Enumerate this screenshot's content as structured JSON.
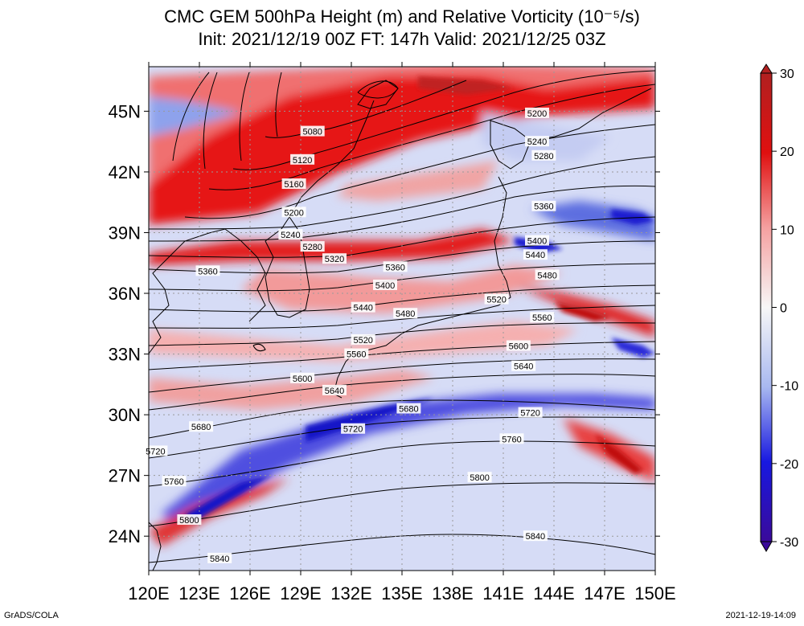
{
  "header": {
    "title_line1": "CMC GEM 500hPa Height (m) and Relative Vorticity (10⁻⁵/s)",
    "title_line2": "Init: 2021/12/19 00Z  FT: 147h  Valid: 2021/12/25 03Z"
  },
  "map": {
    "lon_labels": [
      "120E",
      "123E",
      "126E",
      "129E",
      "132E",
      "135E",
      "138E",
      "141E",
      "144E",
      "147E",
      "150E"
    ],
    "lat_labels": [
      "24N",
      "27N",
      "30N",
      "33N",
      "36N",
      "39N",
      "42N",
      "45N"
    ],
    "lon_range": [
      120,
      150
    ],
    "lat_range": [
      22.3,
      47.2
    ],
    "grid": true
  },
  "contours": {
    "unit": "m",
    "lines": [
      {
        "value": "5080",
        "label_lon": 129.7,
        "label_lat": 44.0
      },
      {
        "value": "5120",
        "label_lon": 129.1,
        "label_lat": 42.6
      },
      {
        "value": "5160",
        "label_lon": 128.6,
        "label_lat": 41.4
      },
      {
        "value": "5200",
        "label_lon": 128.6,
        "label_lat": 40.0
      },
      {
        "value": "5200",
        "label_lon": 143.0,
        "label_lat": 44.9
      },
      {
        "value": "5240",
        "label_lon": 128.4,
        "label_lat": 38.9
      },
      {
        "value": "5240",
        "label_lon": 143.0,
        "label_lat": 43.5
      },
      {
        "value": "5280",
        "label_lon": 129.7,
        "label_lat": 38.3
      },
      {
        "value": "5280",
        "label_lon": 143.4,
        "label_lat": 42.8
      },
      {
        "value": "5320",
        "label_lon": 131.0,
        "label_lat": 37.7
      },
      {
        "value": "5360",
        "label_lon": 123.5,
        "label_lat": 37.1
      },
      {
        "value": "5360",
        "label_lon": 134.6,
        "label_lat": 37.3
      },
      {
        "value": "5360",
        "label_lon": 143.4,
        "label_lat": 40.3
      },
      {
        "value": "5400",
        "label_lon": 134.0,
        "label_lat": 36.4
      },
      {
        "value": "5400",
        "label_lon": 143.0,
        "label_lat": 38.6
      },
      {
        "value": "5440",
        "label_lon": 132.7,
        "label_lat": 35.3
      },
      {
        "value": "5440",
        "label_lon": 142.9,
        "label_lat": 37.9
      },
      {
        "value": "5480",
        "label_lon": 135.2,
        "label_lat": 35.0
      },
      {
        "value": "5480",
        "label_lon": 143.6,
        "label_lat": 36.9
      },
      {
        "value": "5520",
        "label_lon": 132.7,
        "label_lat": 33.7
      },
      {
        "value": "5520",
        "label_lon": 140.6,
        "label_lat": 35.7
      },
      {
        "value": "5560",
        "label_lon": 132.3,
        "label_lat": 33.0
      },
      {
        "value": "5560",
        "label_lon": 143.3,
        "label_lat": 34.8
      },
      {
        "value": "5600",
        "label_lon": 129.1,
        "label_lat": 31.8
      },
      {
        "value": "5600",
        "label_lon": 141.9,
        "label_lat": 33.4
      },
      {
        "value": "5640",
        "label_lon": 131.0,
        "label_lat": 31.2
      },
      {
        "value": "5640",
        "label_lon": 142.2,
        "label_lat": 32.4
      },
      {
        "value": "5680",
        "label_lon": 123.1,
        "label_lat": 29.4
      },
      {
        "value": "5680",
        "label_lon": 135.4,
        "label_lat": 30.3
      },
      {
        "value": "5720",
        "label_lon": 120.4,
        "label_lat": 28.2
      },
      {
        "value": "5720",
        "label_lon": 132.1,
        "label_lat": 29.3
      },
      {
        "value": "5720",
        "label_lon": 142.6,
        "label_lat": 30.1
      },
      {
        "value": "5760",
        "label_lon": 121.5,
        "label_lat": 26.7
      },
      {
        "value": "5760",
        "label_lon": 141.5,
        "label_lat": 28.8
      },
      {
        "value": "5800",
        "label_lon": 122.4,
        "label_lat": 24.8
      },
      {
        "value": "5800",
        "label_lon": 139.6,
        "label_lat": 26.9
      },
      {
        "value": "5840",
        "label_lon": 124.2,
        "label_lat": 22.9
      },
      {
        "value": "5840",
        "label_lon": 142.9,
        "label_lat": 24.0
      }
    ]
  },
  "colorbar": {
    "tick_labels": [
      "30",
      "20",
      "10",
      "0",
      "-10",
      "-20",
      "-30"
    ],
    "tick_values": [
      30,
      20,
      10,
      0,
      -10,
      -20,
      -30
    ],
    "colors": {
      "max_red": "#b12020",
      "strong_red": "#e01010",
      "light_red": "#f5a0a0",
      "zero": "#f7f7f7",
      "light_blue": "#a8b8f0",
      "strong_blue": "#1818e0",
      "max_blue": "#3a0a9a"
    }
  },
  "footer": {
    "left": "GrADS/COLA",
    "right": "2021-12-19-14:09"
  }
}
